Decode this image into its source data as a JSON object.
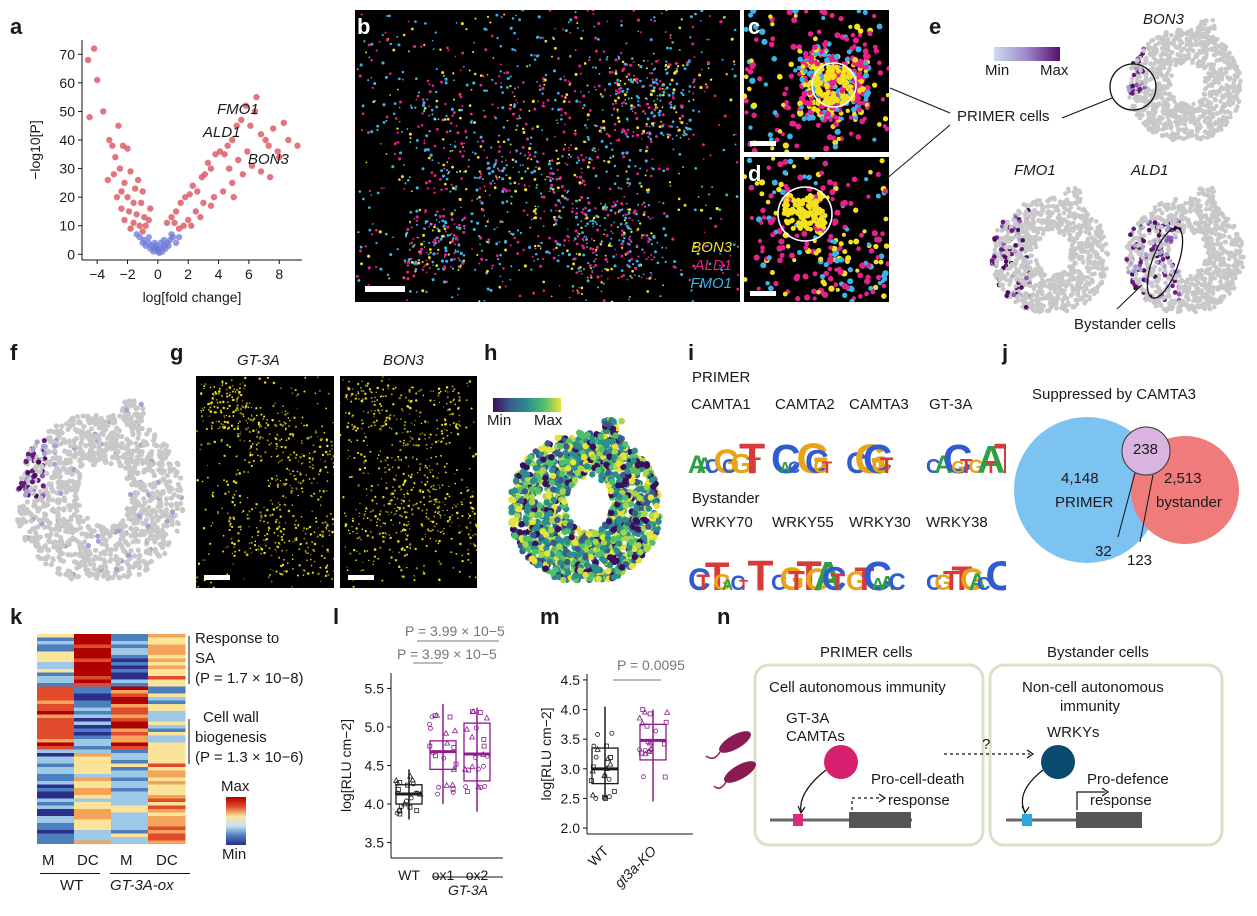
{
  "panels": {
    "a": "a",
    "b": "b",
    "c": "c",
    "d": "d",
    "e": "e",
    "f": "f",
    "g": "g",
    "h": "h",
    "i": "i",
    "j": "j",
    "k": "k",
    "l": "l",
    "m": "m",
    "n": "n"
  },
  "chart_data": [
    {
      "panel": "a",
      "type": "scatter",
      "xlabel": "log[fold change]",
      "ylabel": "−log10[P]",
      "xlim": [
        -5,
        9.5
      ],
      "ylim": [
        -2,
        75
      ],
      "xticks": [
        "−4",
        "−2",
        "0",
        "2",
        "4",
        "6",
        "8"
      ],
      "yticks": [
        "0",
        "10",
        "20",
        "30",
        "40",
        "50",
        "60",
        "70"
      ],
      "annotations": [
        "FMO1",
        "ALD1",
        "BON3"
      ],
      "significant_color": "#d9545f",
      "nonsignificant_color": "#6b79d8",
      "points_sig": [
        [
          -4.2,
          72
        ],
        [
          -4.6,
          68
        ],
        [
          -4.0,
          61
        ],
        [
          -4.5,
          48
        ],
        [
          -3.6,
          50
        ],
        [
          -2.6,
          45
        ],
        [
          -2.3,
          38
        ],
        [
          -2.0,
          37
        ],
        [
          -2.8,
          34
        ],
        [
          -2.5,
          30
        ],
        [
          -2.9,
          28
        ],
        [
          -3.3,
          26
        ],
        [
          -2.2,
          25
        ],
        [
          -1.8,
          29
        ],
        [
          -1.5,
          23
        ],
        [
          -1.3,
          26
        ],
        [
          -2.7,
          20
        ],
        [
          -2.0,
          20
        ],
        [
          -1.6,
          18
        ],
        [
          -1.1,
          18
        ],
        [
          -2.4,
          16
        ],
        [
          -1.9,
          15
        ],
        [
          -1.4,
          14
        ],
        [
          -0.9,
          13
        ],
        [
          -2.2,
          12
        ],
        [
          -1.6,
          11
        ],
        [
          -1.2,
          10
        ],
        [
          -0.8,
          10
        ],
        [
          -0.6,
          12
        ],
        [
          -1.8,
          9
        ],
        [
          -1.0,
          8
        ],
        [
          -3.0,
          38
        ],
        [
          -3.2,
          40
        ],
        [
          -2.4,
          22
        ],
        [
          -1.0,
          22
        ],
        [
          -0.5,
          16
        ],
        [
          0.6,
          11
        ],
        [
          0.9,
          13
        ],
        [
          1.2,
          15
        ],
        [
          1.5,
          18
        ],
        [
          1.8,
          20
        ],
        [
          2.1,
          21
        ],
        [
          2.3,
          24
        ],
        [
          2.6,
          22
        ],
        [
          2.9,
          27
        ],
        [
          3.1,
          28
        ],
        [
          3.3,
          32
        ],
        [
          3.5,
          30
        ],
        [
          3.8,
          35
        ],
        [
          4.1,
          36
        ],
        [
          4.4,
          35
        ],
        [
          4.6,
          38
        ],
        [
          4.9,
          40
        ],
        [
          5.2,
          45
        ],
        [
          5.5,
          47
        ],
        [
          5.8,
          52
        ],
        [
          6.1,
          45
        ],
        [
          6.4,
          50
        ],
        [
          6.8,
          42
        ],
        [
          7.1,
          40
        ],
        [
          7.3,
          38
        ],
        [
          7.6,
          44
        ],
        [
          7.9,
          36
        ],
        [
          8.3,
          46
        ],
        [
          8.6,
          40
        ],
        [
          9.2,
          38
        ],
        [
          6.8,
          29
        ],
        [
          7.4,
          27
        ],
        [
          6.2,
          31
        ],
        [
          5.6,
          28
        ],
        [
          4.9,
          25
        ],
        [
          4.3,
          22
        ],
        [
          3.7,
          20
        ],
        [
          3.0,
          18
        ],
        [
          2.5,
          15
        ],
        [
          2.0,
          12
        ],
        [
          1.7,
          10
        ],
        [
          1.4,
          9
        ],
        [
          1.1,
          11
        ],
        [
          5.3,
          33
        ],
        [
          5.9,
          36
        ],
        [
          4.7,
          30
        ],
        [
          2.8,
          13
        ],
        [
          2.2,
          10
        ],
        [
          3.5,
          17
        ],
        [
          8.0,
          34
        ],
        [
          6.5,
          55
        ],
        [
          5.0,
          20
        ]
      ],
      "points_nonsig": [
        [
          -1.2,
          6
        ],
        [
          -0.9,
          5
        ],
        [
          -0.6,
          4
        ],
        [
          -0.4,
          3
        ],
        [
          -0.2,
          2
        ],
        [
          0,
          1
        ],
        [
          0.2,
          2
        ],
        [
          0.4,
          3
        ],
        [
          0.6,
          4
        ],
        [
          0.8,
          5
        ],
        [
          1.0,
          6
        ],
        [
          -0.8,
          3
        ],
        [
          -0.5,
          2
        ],
        [
          -0.3,
          1
        ],
        [
          0.1,
          0.5
        ],
        [
          0.3,
          1
        ],
        [
          0.5,
          2
        ],
        [
          0.7,
          3
        ],
        [
          -1.0,
          4
        ],
        [
          1.2,
          4
        ],
        [
          -0.1,
          3
        ],
        [
          0.2,
          4
        ],
        [
          -0.6,
          6
        ],
        [
          0.9,
          7
        ],
        [
          -1.4,
          7
        ],
        [
          1.4,
          6
        ],
        [
          0,
          2
        ],
        [
          -0.2,
          4
        ],
        [
          0.4,
          5
        ]
      ]
    },
    {
      "panel": "l",
      "type": "box",
      "ylabel": "log[RLU cm−2]",
      "categories": [
        "WT",
        "ox1",
        "ox2"
      ],
      "group_label": "GT-3A",
      "yticks": [
        "3.5",
        "4.0",
        "4.5",
        "5.0",
        "5.5"
      ],
      "ylim": [
        3.3,
        5.7
      ],
      "pvalues": [
        "P = 3.99 × 10−5",
        "P = 3.99 × 10−5"
      ],
      "boxes": [
        {
          "name": "WT",
          "whisker_low": 3.8,
          "q1": 4.0,
          "median": 4.13,
          "q3": 4.25,
          "whisker_high": 4.45,
          "color": "#1a1a1a"
        },
        {
          "name": "ox1",
          "whisker_low": 4.0,
          "q1": 4.45,
          "median": 4.68,
          "q3": 4.82,
          "whisker_high": 5.3,
          "color": "#8e1b8e"
        },
        {
          "name": "ox2",
          "whisker_low": 3.9,
          "q1": 4.3,
          "median": 4.65,
          "q3": 5.05,
          "whisker_high": 5.25,
          "color": "#8e1b8e"
        }
      ]
    },
    {
      "panel": "m",
      "type": "box",
      "ylabel": "log[RLU cm−2]",
      "categories": [
        "WT",
        "gt3a-KO"
      ],
      "yticks": [
        "2.0",
        "2.5",
        "3.0",
        "3.5",
        "4.0",
        "4.5"
      ],
      "ylim": [
        1.9,
        4.6
      ],
      "pvalues": [
        "P = 0.0095"
      ],
      "boxes": [
        {
          "name": "WT",
          "whisker_low": 2.5,
          "q1": 2.75,
          "median": 3.0,
          "q3": 3.35,
          "whisker_high": 4.05,
          "color": "#1a1a1a"
        },
        {
          "name": "gt3a-KO",
          "whisker_low": 2.45,
          "q1": 3.15,
          "median": 3.48,
          "q3": 3.75,
          "whisker_high": 4.0,
          "color": "#8e1b8e"
        }
      ]
    }
  ],
  "panel_b": {
    "labels": [
      "BON3",
      "ALD1",
      "FMO1"
    ],
    "colors": [
      "#f5e21c",
      "#e6228a",
      "#3ab3e6"
    ]
  },
  "panel_e": {
    "genes": [
      "BON3",
      "FMO1",
      "ALD1"
    ],
    "colorbar": {
      "min": "Min",
      "max": "Max"
    },
    "primer_label": "PRIMER cells",
    "bystander_label": "Bystander cells"
  },
  "panel_g": {
    "titles": [
      "GT-3A",
      "BON3"
    ]
  },
  "panel_h": {
    "min": "Min",
    "max": "Max"
  },
  "panel_i": {
    "primer_title": "PRIMER",
    "primer_motifs": [
      "CAMTA1",
      "CAMTA2",
      "CAMTA3",
      "GT-3A"
    ],
    "bystander_title": "Bystander",
    "bystander_motifs": [
      "WRKY70",
      "WRKY55",
      "WRKY30",
      "WRKY38"
    ]
  },
  "panel_j": {
    "title": "Suppressed by CAMTA3",
    "primer_count": "4,148",
    "primer_label": "PRIMER",
    "bystander_count": "2,513",
    "bystander_label": "bystander",
    "center_count": "238",
    "left_overlap": "32",
    "right_overlap": "123",
    "colors": {
      "primer": "#7cc3f2",
      "bystander": "#ef7b7b",
      "center": "#d9b4df"
    }
  },
  "panel_k": {
    "label1": "Response to",
    "label1b": "SA",
    "p1": "(P = 1.7 × 10−8)",
    "label2": "Cell wall",
    "label2b": "biogenesis",
    "p2": "(P = 1.3 × 10−6)",
    "max": "Max",
    "min": "Min",
    "columns": [
      "M",
      "DC",
      "M",
      "DC"
    ],
    "groups": [
      "WT",
      "GT-3A-ox"
    ]
  },
  "panel_n": {
    "primer_title": "PRIMER cells",
    "bystander_title": "Bystander cells",
    "primer_box": "Cell autonomous immunity",
    "primer_factors": "GT-3A",
    "primer_factors2": "CAMTAs",
    "primer_response1": "Pro-cell-death",
    "primer_response2": "response",
    "bystander_box1": "Non-cell autonomous",
    "bystander_box2": "immunity",
    "bystander_factor": "WRKYs",
    "bystander_response1": "Pro-defence",
    "bystander_response2": "response",
    "question": "?"
  }
}
